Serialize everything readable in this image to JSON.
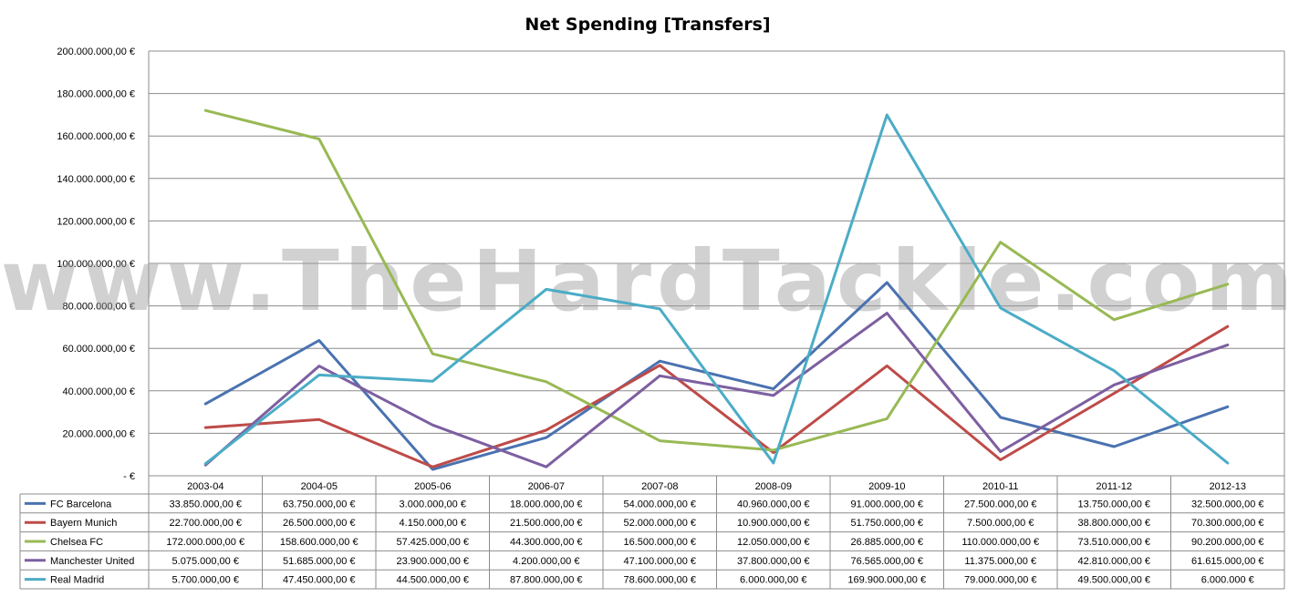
{
  "chart_data": {
    "type": "line",
    "title": "Net Spending [Transfers]",
    "watermark": "www.TheHardTackle.com",
    "categories": [
      "2003-04",
      "2004-05",
      "2005-06",
      "2006-07",
      "2007-08",
      "2008-09",
      "2009-10",
      "2010-11",
      "2011-12",
      "2012-13"
    ],
    "ylim": [
      0,
      200000000
    ],
    "yticks": [
      {
        "value": 200000000,
        "label": "200.000.000,00 €"
      },
      {
        "value": 180000000,
        "label": "180.000.000,00 €"
      },
      {
        "value": 160000000,
        "label": "160.000.000,00 €"
      },
      {
        "value": 140000000,
        "label": "140.000.000,00 €"
      },
      {
        "value": 120000000,
        "label": "120.000.000,00 €"
      },
      {
        "value": 100000000,
        "label": "100.000.000,00 €"
      },
      {
        "value": 80000000,
        "label": "80.000.000,00 €"
      },
      {
        "value": 60000000,
        "label": "60.000.000,00 €"
      },
      {
        "value": 40000000,
        "label": "40.000.000,00 €"
      },
      {
        "value": 20000000,
        "label": "20.000.000,00 €"
      },
      {
        "value": 0,
        "label": "-   €"
      }
    ],
    "grid": true,
    "legend": "data-table-below",
    "series": [
      {
        "name": "FC Barcelona",
        "color": "#4a72b0",
        "values": [
          33850000,
          63750000,
          3000000,
          18000000,
          54000000,
          40960000,
          91000000,
          27500000,
          13750000,
          32500000
        ],
        "labels": [
          "33.850.000,00 €",
          "63.750.000,00 €",
          "3.000.000,00 €",
          "18.000.000,00 €",
          "54.000.000,00 €",
          "40.960.000,00 €",
          "91.000.000,00 €",
          "27.500.000,00 €",
          "13.750.000,00 €",
          "32.500.000,00 €"
        ]
      },
      {
        "name": "Bayern Munich",
        "color": "#be4b48",
        "values": [
          22700000,
          26500000,
          4150000,
          21500000,
          52000000,
          10900000,
          51750000,
          7500000,
          38800000,
          70300000
        ],
        "labels": [
          "22.700.000,00 €",
          "26.500.000,00 €",
          "4.150.000,00 €",
          "21.500.000,00 €",
          "52.000.000,00 €",
          "10.900.000,00 €",
          "51.750.000,00 €",
          "7.500.000,00 €",
          "38.800.000,00 €",
          "70.300.000,00 €"
        ]
      },
      {
        "name": "Chelsea FC",
        "color": "#98b954",
        "values": [
          172000000,
          158600000,
          57425000,
          44300000,
          16500000,
          12050000,
          26885000,
          110000000,
          73510000,
          90200000
        ],
        "labels": [
          "172.000.000,00 €",
          "158.600.000,00 €",
          "57.425.000,00 €",
          "44.300.000,00 €",
          "16.500.000,00 €",
          "12.050.000,00 €",
          "26.885.000,00 €",
          "110.000.000,00 €",
          "73.510.000,00 €",
          "90.200.000,00 €"
        ]
      },
      {
        "name": "Manchester United",
        "color": "#7d5fa0",
        "values": [
          5075000,
          51685000,
          23900000,
          4200000,
          47100000,
          37800000,
          76565000,
          11375000,
          42810000,
          61615000
        ],
        "labels": [
          "5.075.000,00 €",
          "51.685.000,00 €",
          "23.900.000,00 €",
          "4.200.000,00 €",
          "47.100.000,00 €",
          "37.800.000,00 €",
          "76.565.000,00 €",
          "11.375.000,00 €",
          "42.810.000,00 €",
          "61.615.000,00 €"
        ]
      },
      {
        "name": "Real Madrid",
        "color": "#4bacc6",
        "values": [
          5700000,
          47450000,
          44500000,
          87800000,
          78600000,
          6000000,
          169900000,
          79000000,
          49500000,
          6000000
        ],
        "labels": [
          "5.700.000,00 €",
          "47.450.000,00 €",
          "44.500.000,00 €",
          "87.800.000,00 €",
          "78.600.000,00 €",
          "6.000.000,00 €",
          "169.900.000,00 €",
          "79.000.000,00 €",
          "49.500.000,00 €",
          "6.000.000 €"
        ]
      }
    ]
  }
}
